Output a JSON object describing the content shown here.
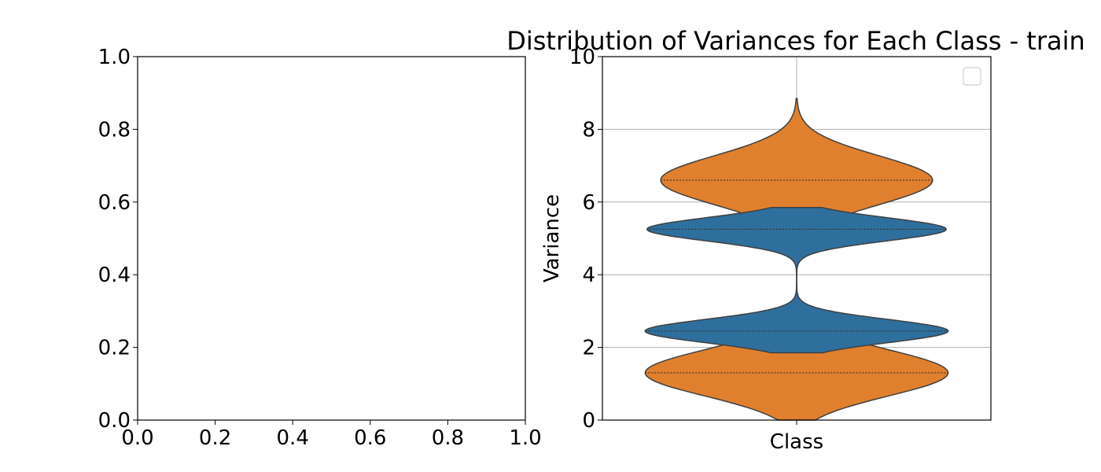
{
  "colors": {
    "blue": "#2e6f9e",
    "orange": "#e0802e",
    "outline": "#404040",
    "grid": "#b0b0b0",
    "axes": "#000000"
  },
  "chart_data": [
    {
      "type": "empty",
      "title": "",
      "xlabel": "",
      "ylabel": "",
      "xlim": [
        0.0,
        1.0
      ],
      "ylim": [
        0.0,
        1.0
      ],
      "xticks": [
        "0.0",
        "0.2",
        "0.4",
        "0.6",
        "0.8",
        "1.0"
      ],
      "yticks": [
        "0.0",
        "0.2",
        "0.4",
        "0.6",
        "0.8",
        "1.0"
      ],
      "grid": false
    },
    {
      "type": "violin",
      "title": "Distribution of Variances for Each Class - train",
      "xlabel": "Class",
      "ylabel": "Variance",
      "ylim": [
        0,
        10
      ],
      "yticks": [
        "0",
        "2",
        "4",
        "6",
        "8",
        "10"
      ],
      "grid": true,
      "legend": {
        "placement": "top-right",
        "entries": []
      },
      "series": [
        {
          "color_key": "orange",
          "components": [
            {
              "center": 6.6,
              "spread": 0.95,
              "peak_halfwidth": 0.7
            },
            {
              "center": 1.3,
              "spread": 0.9,
              "peak_halfwidth": 0.78
            }
          ],
          "range": [
            0.0,
            8.85
          ],
          "quartile_lines": [
            1.3,
            6.6
          ]
        },
        {
          "color_key": "blue",
          "components": [
            {
              "center": 5.25,
              "spread": 0.45,
              "peak_halfwidth": 0.77
            },
            {
              "center": 2.45,
              "spread": 0.45,
              "peak_halfwidth": 0.78
            }
          ],
          "range": [
            1.85,
            5.85
          ],
          "quartile_lines": [
            2.45,
            5.25
          ]
        }
      ]
    }
  ]
}
